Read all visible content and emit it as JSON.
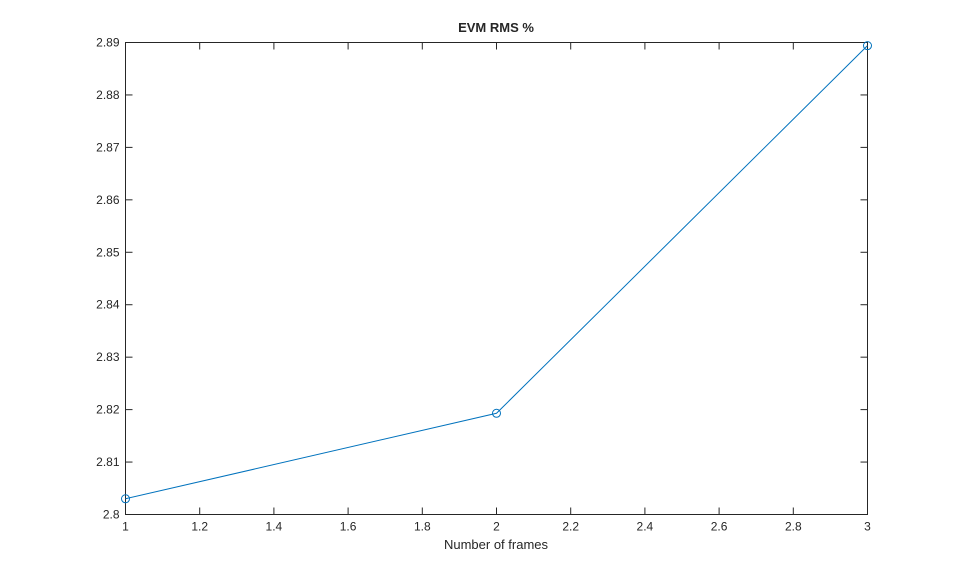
{
  "chart_data": {
    "type": "line",
    "title": "EVM RMS %",
    "xlabel": "Number of frames",
    "x": [
      1,
      2,
      3
    ],
    "values": [
      2.803,
      2.8193,
      2.8894
    ],
    "color": "#0072bd",
    "marker": "circle",
    "xlim": [
      1,
      3
    ],
    "xticks": [
      1,
      1.2,
      1.4,
      1.6,
      1.8,
      2,
      2.2,
      2.4,
      2.6,
      2.8,
      3
    ],
    "ylim": [
      2.8,
      2.89
    ],
    "yticks": [
      2.8,
      2.81,
      2.82,
      2.83,
      2.84,
      2.85,
      2.86,
      2.87,
      2.88,
      2.89
    ],
    "grid": false
  }
}
